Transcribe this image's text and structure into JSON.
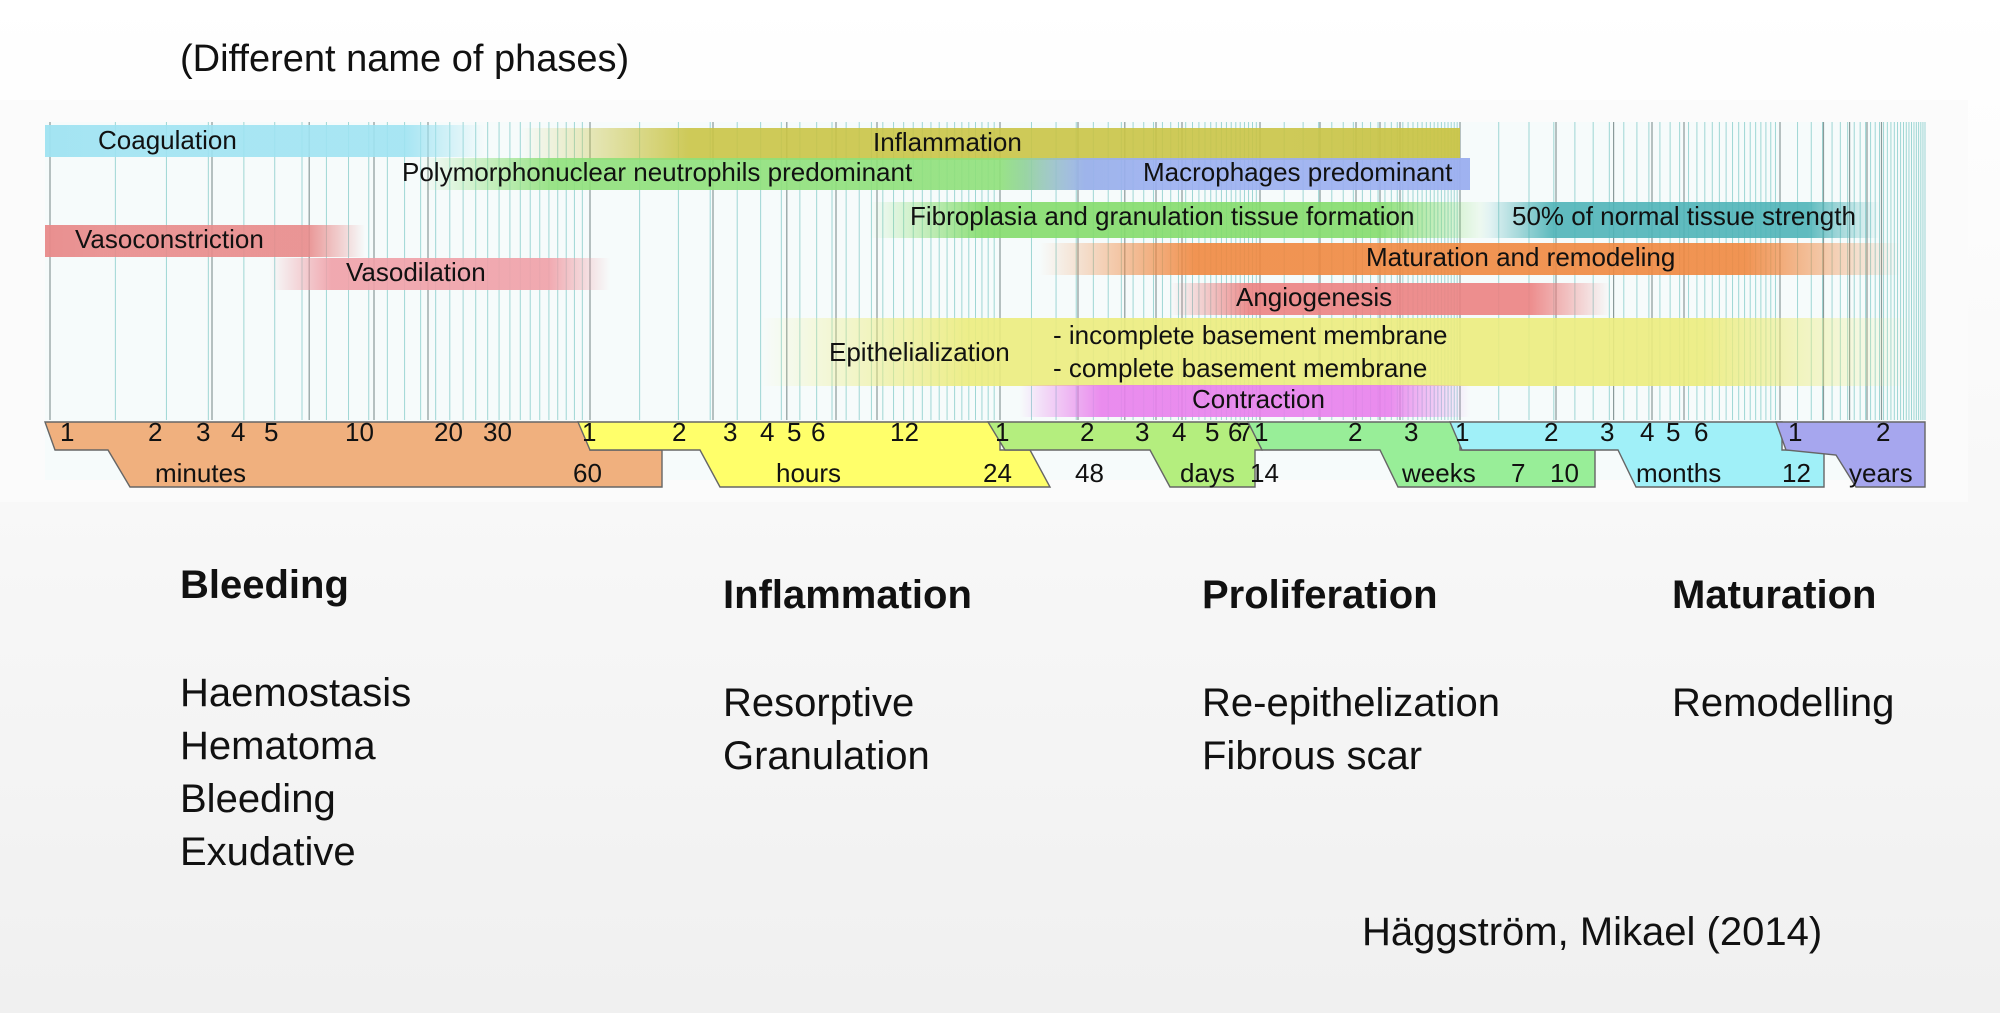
{
  "subtitle": "(Different name of phases)",
  "diagram": {
    "processes": [
      {
        "id": "coagulation",
        "label": "Coagulation",
        "color": "#9fe3f2"
      },
      {
        "id": "inflammation",
        "label": "Inflammation",
        "color": "#c9c446"
      },
      {
        "id": "pmn",
        "label": "Polymorphonuclear neutrophils predominant",
        "color": "#8fe07a"
      },
      {
        "id": "macrophages",
        "label": "Macrophages predominant",
        "color": "#9aaef0"
      },
      {
        "id": "vasoconstriction",
        "label": "Vasoconstriction",
        "color": "#e88a8a"
      },
      {
        "id": "vasodilation",
        "label": "Vasodilation",
        "color": "#f0a0a8"
      },
      {
        "id": "fibroplasia",
        "label": "Fibroplasia and granulation tissue formation",
        "color": "#84dc6c"
      },
      {
        "id": "strength",
        "label": "50% of normal tissue strength",
        "color": "#4fb4b8"
      },
      {
        "id": "maturation",
        "label": "Maturation and remodeling",
        "color": "#f08840"
      },
      {
        "id": "angiogenesis",
        "label": "Angiogenesis",
        "color": "#ec8282"
      },
      {
        "id": "epithelialization",
        "label": "Epithelialization",
        "color": "#ecec7e"
      },
      {
        "id": "incomplete_bm",
        "label": "- incomplete basement membrane",
        "color": "#ecec7e"
      },
      {
        "id": "complete_bm",
        "label": "- complete basement membrane",
        "color": "#ecec7e"
      },
      {
        "id": "contraction",
        "label": "Contraction",
        "color": "#e880ec"
      }
    ],
    "scale_units": [
      {
        "id": "minutes",
        "label": "minutes",
        "color": "#f0b07e",
        "ticks": [
          "1",
          "2",
          "3",
          "4",
          "5",
          "10",
          "20",
          "30",
          "60"
        ]
      },
      {
        "id": "hours",
        "label": "hours",
        "color": "#ffff6a",
        "ticks": [
          "1",
          "2",
          "3",
          "4",
          "5",
          "6",
          "12",
          "24",
          "48"
        ]
      },
      {
        "id": "days",
        "label": "days",
        "color": "#b4ee7e",
        "ticks": [
          "1",
          "2",
          "3",
          "4",
          "5",
          "6",
          "7",
          "14"
        ]
      },
      {
        "id": "weeks",
        "label": "weeks",
        "color": "#98ee98",
        "ticks": [
          "1",
          "2",
          "3",
          "7",
          "10"
        ]
      },
      {
        "id": "months",
        "label": "months",
        "color": "#a0f0f8",
        "ticks": [
          "1",
          "2",
          "3",
          "4",
          "5",
          "6",
          "12"
        ]
      },
      {
        "id": "years",
        "label": "years",
        "color": "#a6a6ee",
        "ticks": [
          "1",
          "2"
        ]
      }
    ]
  },
  "phases": [
    {
      "title": "Bleeding",
      "terms": [
        "Haemostasis",
        "Hematoma",
        "Bleeding",
        "Exudative"
      ]
    },
    {
      "title": "Inflammation",
      "terms": [
        "Resorptive",
        "Granulation"
      ]
    },
    {
      "title": "Proliferation",
      "terms": [
        "Re-epithelization",
        "Fibrous scar"
      ]
    },
    {
      "title": "Maturation",
      "terms": [
        "Remodelling"
      ]
    }
  ],
  "citation": "Häggström, Mikael (2014)"
}
